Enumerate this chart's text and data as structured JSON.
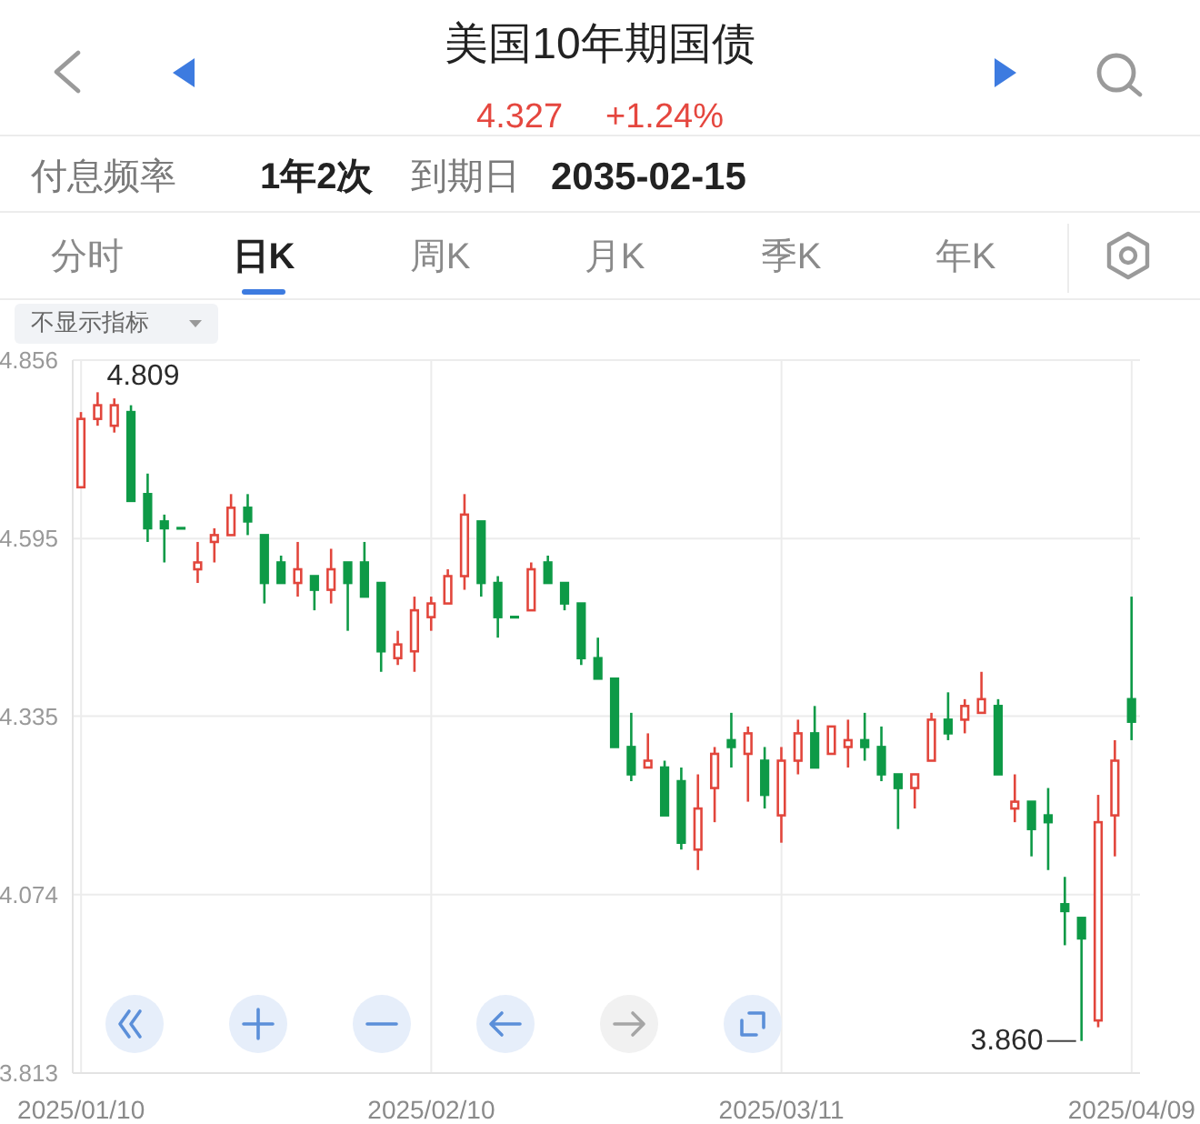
{
  "chart_data": {
    "type": "candlestick",
    "title": "美国10年期国债",
    "categories": [
      "2025/01/10",
      null,
      null,
      null,
      null,
      null,
      null,
      null,
      null,
      null,
      null,
      null,
      null,
      null,
      null,
      null,
      null,
      null,
      null,
      null,
      null,
      "2025/02/10",
      null,
      null,
      null,
      null,
      null,
      null,
      null,
      null,
      null,
      null,
      null,
      null,
      null,
      null,
      null,
      null,
      null,
      null,
      null,
      null,
      "2025/03/11",
      null,
      null,
      null,
      null,
      null,
      null,
      null,
      null,
      null,
      null,
      null,
      null,
      null,
      null,
      null,
      null,
      null,
      null,
      null,
      null,
      "2025/04/09"
    ],
    "ohlc": [
      [
        4.67,
        4.78,
        4.67,
        4.77
      ],
      [
        4.77,
        4.809,
        4.76,
        4.79
      ],
      [
        4.76,
        4.8,
        4.75,
        4.79
      ],
      [
        4.78,
        4.79,
        4.65,
        4.65
      ],
      [
        4.66,
        4.69,
        4.59,
        4.61
      ],
      [
        4.62,
        4.63,
        4.56,
        4.61
      ],
      [
        4.61,
        4.61,
        4.61,
        4.61
      ],
      [
        4.55,
        4.59,
        4.53,
        4.56
      ],
      [
        4.59,
        4.61,
        4.56,
        4.6
      ],
      [
        4.6,
        4.66,
        4.6,
        4.64
      ],
      [
        4.64,
        4.66,
        4.6,
        4.62
      ],
      [
        4.6,
        4.6,
        4.5,
        4.53
      ],
      [
        4.56,
        4.57,
        4.53,
        4.53
      ],
      [
        4.53,
        4.59,
        4.51,
        4.55
      ],
      [
        4.54,
        4.54,
        4.49,
        4.52
      ],
      [
        4.52,
        4.58,
        4.5,
        4.55
      ],
      [
        4.56,
        4.56,
        4.46,
        4.53
      ],
      [
        4.56,
        4.59,
        4.51,
        4.51
      ],
      [
        4.53,
        4.53,
        4.4,
        4.43
      ],
      [
        4.42,
        4.46,
        4.41,
        4.44
      ],
      [
        4.43,
        4.51,
        4.4,
        4.49
      ],
      [
        4.48,
        4.51,
        4.46,
        4.5
      ],
      [
        4.5,
        4.55,
        4.5,
        4.54
      ],
      [
        4.54,
        4.66,
        4.52,
        4.63
      ],
      [
        4.62,
        4.62,
        4.51,
        4.53
      ],
      [
        4.53,
        4.54,
        4.45,
        4.48
      ],
      [
        4.48,
        4.48,
        4.48,
        4.48
      ],
      [
        4.49,
        4.56,
        4.49,
        4.55
      ],
      [
        4.56,
        4.57,
        4.53,
        4.53
      ],
      [
        4.53,
        4.53,
        4.49,
        4.5
      ],
      [
        4.5,
        4.5,
        4.41,
        4.42
      ],
      [
        4.42,
        4.45,
        4.39,
        4.39
      ],
      [
        4.39,
        4.39,
        4.29,
        4.29
      ],
      [
        4.29,
        4.34,
        4.24,
        4.25
      ],
      [
        4.26,
        4.31,
        4.26,
        4.27
      ],
      [
        4.26,
        4.27,
        4.19,
        4.19
      ],
      [
        4.24,
        4.26,
        4.14,
        4.15
      ],
      [
        4.14,
        4.25,
        4.11,
        4.2
      ],
      [
        4.23,
        4.29,
        4.18,
        4.28
      ],
      [
        4.3,
        4.34,
        4.26,
        4.29
      ],
      [
        4.28,
        4.32,
        4.21,
        4.31
      ],
      [
        4.27,
        4.29,
        4.2,
        4.22
      ],
      [
        4.19,
        4.29,
        4.15,
        4.27
      ],
      [
        4.27,
        4.33,
        4.25,
        4.31
      ],
      [
        4.31,
        4.35,
        4.26,
        4.26
      ],
      [
        4.28,
        4.32,
        4.28,
        4.32
      ],
      [
        4.29,
        4.33,
        4.26,
        4.3
      ],
      [
        4.3,
        4.34,
        4.27,
        4.29
      ],
      [
        4.29,
        4.32,
        4.24,
        4.25
      ],
      [
        4.25,
        4.25,
        4.17,
        4.23
      ],
      [
        4.23,
        4.25,
        4.2,
        4.25
      ],
      [
        4.27,
        4.34,
        4.27,
        4.33
      ],
      [
        4.33,
        4.37,
        4.3,
        4.31
      ],
      [
        4.33,
        4.36,
        4.31,
        4.35
      ],
      [
        4.34,
        4.4,
        4.34,
        4.36
      ],
      [
        4.35,
        4.36,
        4.25,
        4.25
      ],
      [
        4.2,
        4.25,
        4.18,
        4.21
      ],
      [
        4.21,
        4.21,
        4.13,
        4.17
      ],
      [
        4.19,
        4.23,
        4.11,
        4.18
      ],
      [
        4.06,
        4.1,
        4.0,
        4.05
      ],
      [
        4.04,
        4.04,
        3.86,
        4.01
      ],
      [
        3.89,
        4.22,
        3.88,
        4.18
      ],
      [
        4.19,
        4.3,
        4.13,
        4.27
      ],
      [
        4.36,
        4.51,
        4.3,
        4.327
      ]
    ],
    "colors": [
      "#e2463c",
      "#e2463c",
      "#e2463c",
      "#0e9a47",
      "#0e9a47",
      "#0e9a47",
      "#0e9a47",
      "#e2463c",
      "#e2463c",
      "#e2463c",
      "#0e9a47",
      "#0e9a47",
      "#0e9a47",
      "#e2463c",
      "#0e9a47",
      "#e2463c",
      "#0e9a47",
      "#0e9a47",
      "#0e9a47",
      "#e2463c",
      "#e2463c",
      "#e2463c",
      "#e2463c",
      "#e2463c",
      "#0e9a47",
      "#0e9a47",
      "#0e9a47",
      "#e2463c",
      "#0e9a47",
      "#0e9a47",
      "#0e9a47",
      "#0e9a47",
      "#0e9a47",
      "#0e9a47",
      "#e2463c",
      "#0e9a47",
      "#0e9a47",
      "#e2463c",
      "#e2463c",
      "#0e9a47",
      "#e2463c",
      "#0e9a47",
      "#e2463c",
      "#e2463c",
      "#0e9a47",
      "#e2463c",
      "#e2463c",
      "#0e9a47",
      "#0e9a47",
      "#0e9a47",
      "#e2463c",
      "#e2463c",
      "#0e9a47",
      "#e2463c",
      "#e2463c",
      "#0e9a47",
      "#e2463c",
      "#0e9a47",
      "#0e9a47",
      "#0e9a47",
      "#0e9a47",
      "#e2463c",
      "#e2463c",
      "#0e9a47"
    ],
    "ylim": [
      3.813,
      4.856
    ],
    "yticks": [
      3.813,
      4.074,
      4.335,
      4.595,
      4.856
    ],
    "grid": true,
    "annotations": [
      "4.327",
      "+1.24%",
      "付息频率",
      "1年2次",
      "到期日",
      "2035-02-15",
      "分时",
      "日K",
      "周K",
      "月K",
      "季K",
      "年K",
      "不显示指标",
      "4.809",
      "3.860"
    ]
  }
}
